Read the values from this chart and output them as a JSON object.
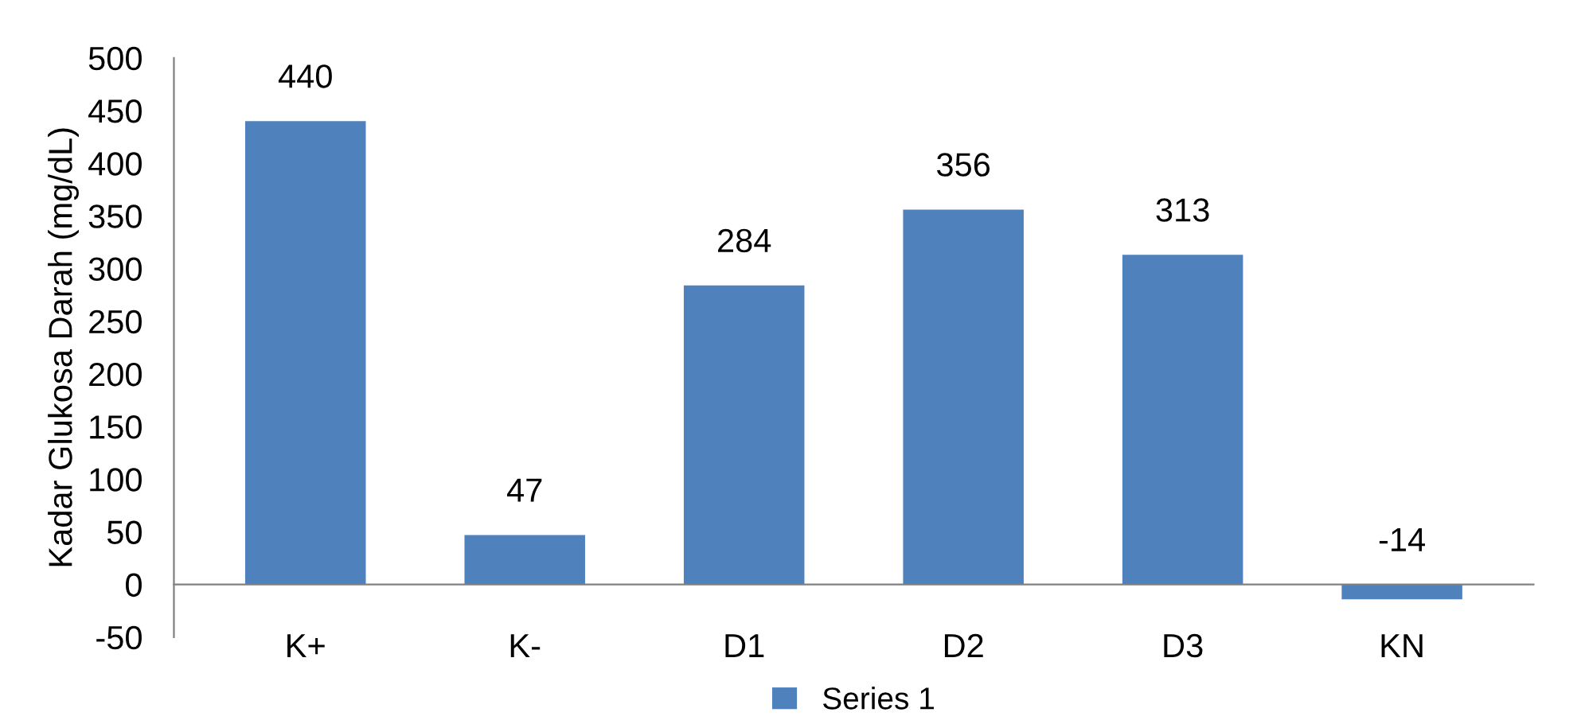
{
  "chart_data": {
    "type": "bar",
    "ylabel": "Kadar Glukosa Darah (mg/dL)",
    "categories": [
      "K+",
      "K-",
      "D1",
      "D2",
      "D3",
      "KN"
    ],
    "series": [
      {
        "name": "Series 1",
        "color": "#4f81bd",
        "values": [
          440,
          47,
          284,
          356,
          313,
          -14
        ]
      }
    ],
    "ylim": [
      -50,
      500
    ],
    "yticks": [
      -50,
      0,
      50,
      100,
      150,
      200,
      250,
      300,
      350,
      400,
      450,
      500
    ],
    "data_labels": true,
    "legend": "bottom",
    "grid": false
  }
}
